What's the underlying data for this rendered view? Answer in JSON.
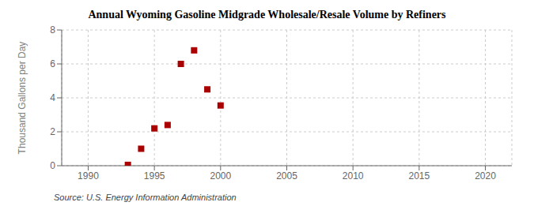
{
  "chart_data": {
    "type": "scatter",
    "title": "Annual Wyoming Gasoline Midgrade Wholesale/Resale Volume by Refiners",
    "ylabel": "Thousand Gallons per Day",
    "annotations": [
      "Source: U.S. Energy Information Administration"
    ],
    "x": [
      1993,
      1994,
      1995,
      1996,
      1997,
      1998,
      1999,
      2000
    ],
    "values": [
      0.05,
      1.0,
      2.2,
      2.4,
      6.0,
      6.8,
      4.5,
      3.55
    ],
    "xlim": [
      1988,
      2022
    ],
    "ylim": [
      0,
      8
    ],
    "xticks": [
      1990,
      1995,
      2000,
      2005,
      2010,
      2015,
      2020
    ],
    "yticks": [
      0,
      2,
      4,
      6,
      8
    ],
    "color": "#aa0000",
    "marker": "square",
    "grid": true
  }
}
